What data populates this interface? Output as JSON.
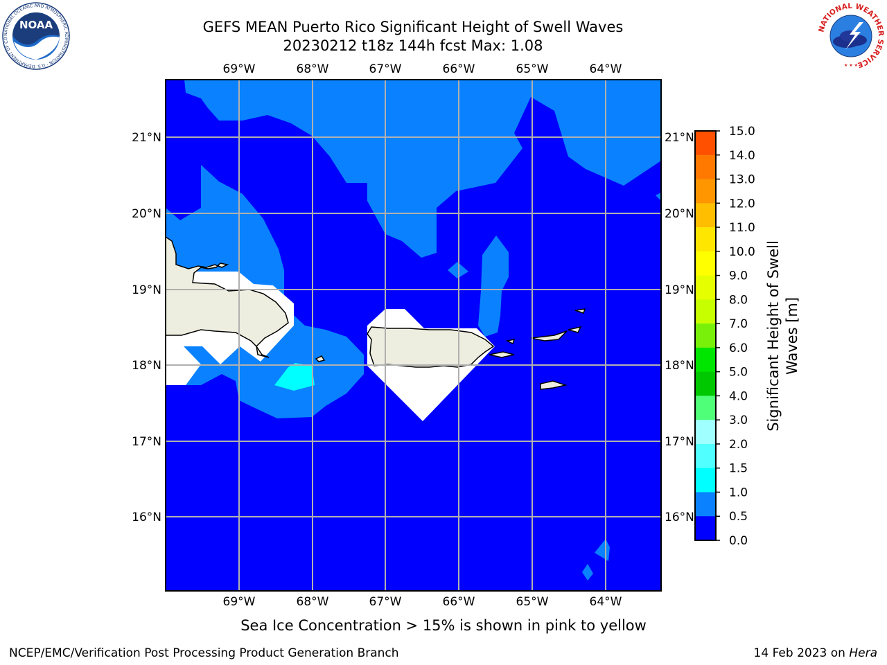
{
  "header": {
    "title_line1": "GEFS MEAN Puerto Rico Significant Height of Swell Waves",
    "title_line2": "20230212 t18z 144h fcst   Max: 1.08"
  },
  "logos": {
    "left": {
      "text": "NOAA",
      "ring_text": "NATIONAL OCEANIC AND ATMOSPHERIC ADMINISTRATION · U.S. DEPARTMENT OF COMMERCE",
      "icon": "noaa-logo"
    },
    "right": {
      "ring_text": "NATIONAL WEATHER SERVICE",
      "icon": "nws-logo"
    }
  },
  "map": {
    "lon_labels": [
      "69°W",
      "68°W",
      "67°W",
      "66°W",
      "65°W",
      "64°W"
    ],
    "lat_labels": [
      "21°N",
      "20°N",
      "19°N",
      "18°N",
      "17°N",
      "16°N"
    ],
    "colors": {
      "ocean_low": "#0000ff",
      "swell_0_5": "#0a82ff",
      "swell_1_0": "#00ffff",
      "land": "#eeeee0",
      "masked": "#ffffff",
      "grid": "#b0b0b0"
    }
  },
  "colorbar": {
    "tick_labels": [
      "15.0",
      "14.0",
      "13.0",
      "12.0",
      "11.0",
      "10.0",
      "9.0",
      "8.0",
      "7.0",
      "6.0",
      "5.0",
      "4.0",
      "3.0",
      "2.0",
      "1.5",
      "1.0",
      "0.5",
      "0.0"
    ],
    "segment_colors": [
      "#ff0000",
      "#ff2800",
      "#ff5000",
      "#ff7800",
      "#ff9600",
      "#ffbe00",
      "#ffe600",
      "#ffff00",
      "#e6ff00",
      "#c8ff00",
      "#78f00a",
      "#00e600",
      "#00c800",
      "#50ff78",
      "#a0ffff",
      "#50ffff",
      "#00ffff",
      "#0a82ff",
      "#0000ff"
    ],
    "label": "Significant Height of Swell Waves [m]",
    "label_line1": "Significant Height of Swell",
    "label_line2": "Waves [m]"
  },
  "note": "Sea Ice Concentration > 15% is shown in pink to yellow",
  "footer": {
    "left": "NCEP/EMC/Verification Post Processing Product Generation Branch",
    "right_prefix": "14 Feb 2023 on ",
    "right_host": "Hera"
  }
}
